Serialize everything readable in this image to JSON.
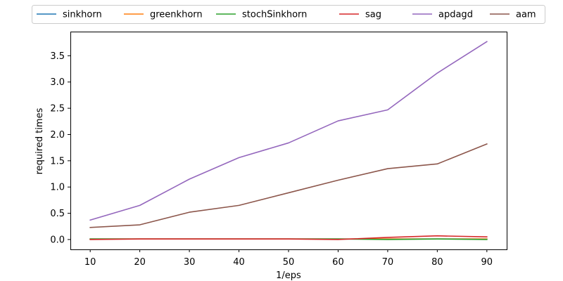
{
  "chart_data": {
    "type": "line",
    "title": "",
    "xlabel": "1/eps",
    "ylabel": "required times",
    "x": [
      10,
      20,
      30,
      40,
      50,
      60,
      70,
      80,
      90
    ],
    "xticks": [
      "10",
      "20",
      "30",
      "40",
      "50",
      "60",
      "70",
      "80",
      "90"
    ],
    "yticks": [
      "0.0",
      "0.5",
      "1.0",
      "1.5",
      "2.0",
      "2.5",
      "3.0",
      "3.5"
    ],
    "xlim": [
      6,
      94
    ],
    "ylim": [
      -0.188,
      3.96
    ],
    "grid": false,
    "legend_position": "top, outside plot, single row",
    "series": [
      {
        "name": "sinkhorn",
        "color": "#1f77b4",
        "values": [
          0.01,
          0.01,
          0.01,
          0.01,
          0.01,
          0.01,
          0.01,
          0.01,
          0.01
        ]
      },
      {
        "name": "greenkhorn",
        "color": "#ff7f0e",
        "values": [
          0.01,
          0.01,
          0.01,
          0.01,
          0.01,
          0.01,
          0.01,
          0.01,
          0.01
        ]
      },
      {
        "name": "stochSinkhorn",
        "color": "#2ca02c",
        "values": [
          0.01,
          0.01,
          0.01,
          0.01,
          0.01,
          0.01,
          0.0,
          0.01,
          0.0
        ]
      },
      {
        "name": "sag",
        "color": "#d62728",
        "values": [
          0.0,
          0.01,
          0.01,
          0.01,
          0.01,
          0.0,
          0.04,
          0.07,
          0.05
        ]
      },
      {
        "name": "apdagd",
        "color": "#9467bd",
        "values": [
          0.37,
          0.65,
          1.15,
          1.56,
          1.84,
          2.26,
          2.47,
          3.17,
          3.77
        ]
      },
      {
        "name": "aam",
        "color": "#8c564b",
        "values": [
          0.23,
          0.28,
          0.52,
          0.65,
          0.89,
          1.13,
          1.35,
          1.44,
          1.82
        ]
      }
    ]
  }
}
